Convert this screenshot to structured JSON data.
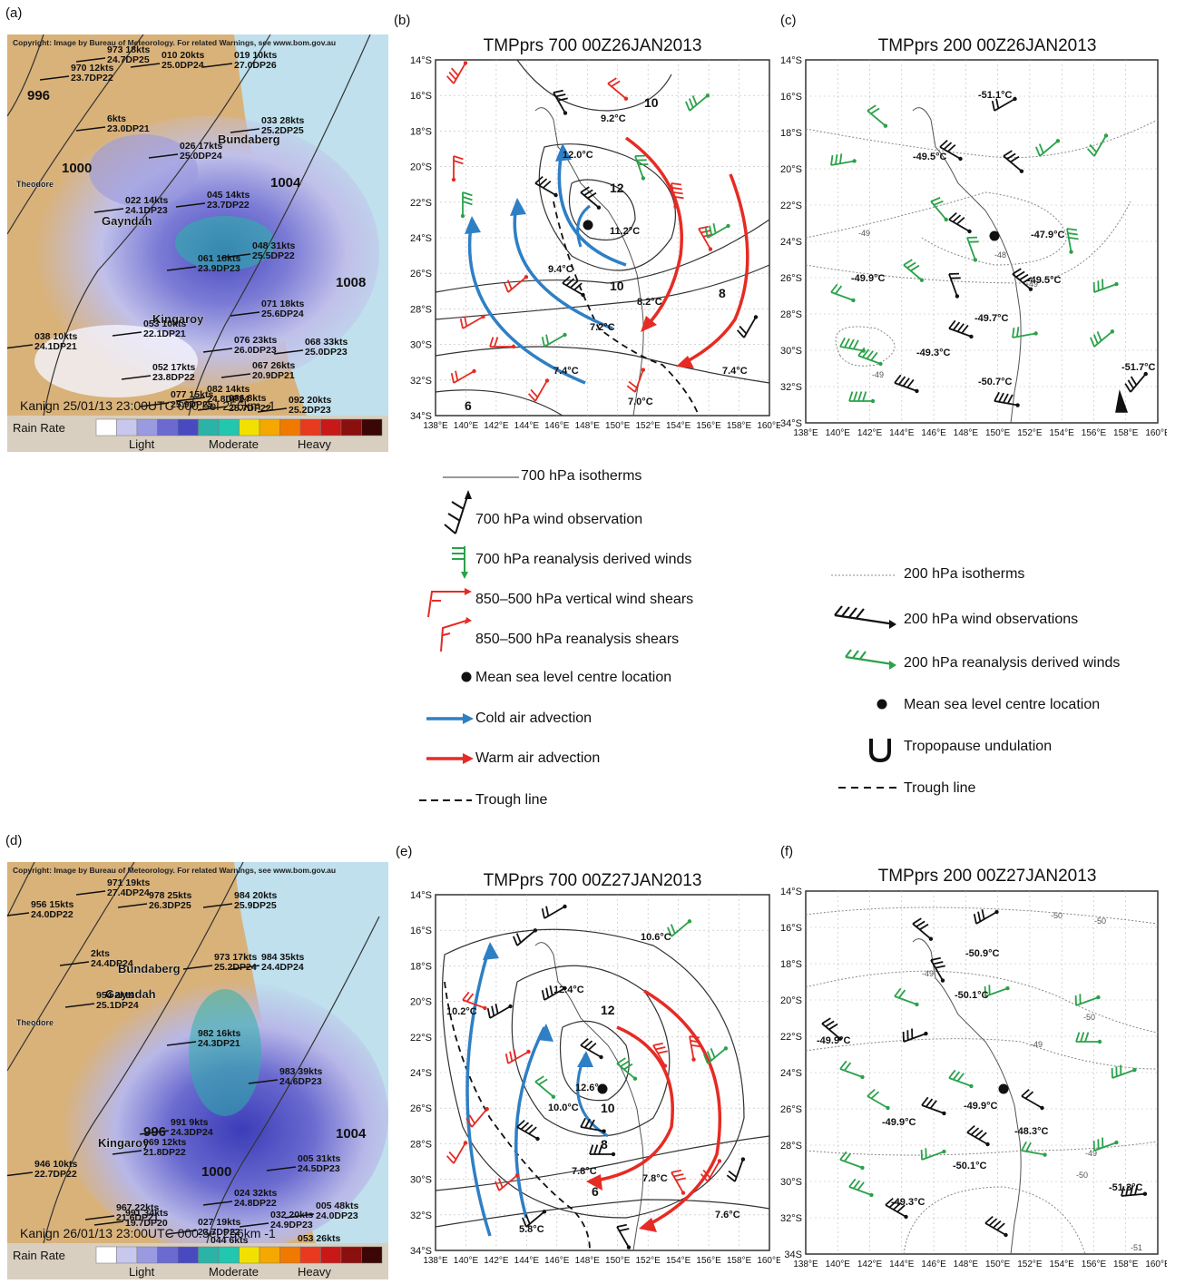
{
  "panels": {
    "a": {
      "label": "(a)",
      "copyright": "Copyright: Image by Bureau of Meteorology. For related Warnings, see www.bom.gov.au",
      "footer": "Kanign  25/01/13 23:00UTC 000.5el 256km -1",
      "rain_rate": "Rain Rate",
      "cats": [
        "Light",
        "Moderate",
        "Heavy"
      ],
      "isobars": [
        "996",
        "1000",
        "1004",
        "1008"
      ],
      "places": [
        "Bundaberg",
        "Gayndah",
        "Kingaroy",
        "Theodore"
      ],
      "obs": [
        "973 18kts 24.7DP25",
        "970 12kts 23.7DP22",
        "010 20kts 25.0DP24",
        "019 10kts 27.0DP26",
        "6kts 23.0DP21",
        "033 28kts 25.2DP25",
        "026 17kts 25.0DP24",
        "022 14kts 24.1DP23",
        "045 14kts 23.7DP22",
        "048 31kts 25.5DP22",
        "061 18kts 23.9DP23",
        "053 10kts 22.1DP21",
        "038 10kts 24.1DP21",
        "071 18kts 25.6DP24",
        "076 23kts 26.0DP23",
        "068 33kts 25.0DP23",
        "052 17kts 23.8DP22",
        "067 26kts 20.9DP21",
        "082 14kts 24.8DP24",
        "077 15kts 25.9DP25",
        "086 8kts 25.7DP22",
        "092 20kts 25.2DP23"
      ]
    },
    "b": {
      "label": "(b)",
      "title": "TMPprs 700 00Z26JAN2013",
      "temps": [
        "9.2°C",
        "12.0°C",
        "11.2°C",
        "9.4°C",
        "8.2°C",
        "7.2°C",
        "7.4°C",
        "7.0°C",
        "7.4°C"
      ],
      "contours": [
        "10",
        "12",
        "10",
        "8",
        "6"
      ]
    },
    "c": {
      "label": "(c)",
      "title": "TMPprs 200 00Z26JAN2013",
      "temps": [
        "-51.1°C",
        "-49.5°C",
        "-47.9°C",
        "-49.9°C",
        "-49.5°C",
        "-49.7°C",
        "-49.3°C",
        "-50.7°C",
        "-51.7°C"
      ],
      "contours": [
        "-49",
        "-48",
        "-49",
        "-49"
      ]
    },
    "d": {
      "label": "(d)",
      "copyright": "Copyright: Image by Bureau of Meteorology. For related Warnings, see www.bom.gov.au",
      "footer": "Kanign  26/01/13 23:00UTC 000.5el 256km -1",
      "rain_rate": "Rain Rate",
      "cats": [
        "Light",
        "Moderate",
        "Heavy"
      ],
      "isobars": [
        "996",
        "1000",
        "1004"
      ],
      "places": [
        "Bundaberg",
        "Gayndah",
        "Kingaroy",
        "Theodore"
      ],
      "obs": [
        "971 19kts 27.4DP24",
        "956 15kts 24.0DP22",
        "978 25kts 26.3DP25",
        "984 20kts 25.9DP25",
        "2kts 24.4DP24",
        "973 17kts 25.2DP24",
        "984 35kts 24.4DP24",
        "954 2kts 25.1DP24",
        "982 16kts 24.3DP21",
        "983 39kts 24.6DP23",
        "991 9kts 24.3DP24",
        "946 10kts 22.7DP22",
        "969 12kts 21.8DP22",
        "005 31kts 24.5DP23",
        "024 32kts 24.8DP22",
        "005 48kts 24.0DP23",
        "032 20kts 24.9DP23",
        "967 22kts 21.6DP21",
        "991 34kts 19.7DP20",
        "027 19kts 23.7DP22",
        "044 6kts 23.4DP22",
        "053 26kts 23.9DP22"
      ]
    },
    "e": {
      "label": "(e)",
      "title": "TMPprs 700 00Z27JAN2013",
      "temps": [
        "10.6°C",
        "12.4°C",
        "10.2°C",
        "12.6°C",
        "10.0°C",
        "7.8°C",
        "7.8°C",
        "5.8°C",
        "7.6°C"
      ],
      "contours": [
        "12",
        "10",
        "8",
        "6"
      ]
    },
    "f": {
      "label": "(f)",
      "title": "TMPprs 200 00Z27JAN2013",
      "temps": [
        "-50.9°C",
        "-50.1°C",
        "-49.9°C",
        "-49.9°C",
        "-48.3°C",
        "-49.9°C",
        "-50.1°C",
        "-49.3°C",
        "-51.3°C"
      ],
      "contours": [
        "-50",
        "-50",
        "-49",
        "-50",
        "-49",
        "-49",
        "-50",
        "-51"
      ]
    }
  },
  "map_axes": {
    "lat_labels_700": [
      "14°S",
      "16°S",
      "18°S",
      "20°S",
      "22°S",
      "24°S",
      "26°S",
      "28°S",
      "30°S",
      "32°S",
      "34°S"
    ],
    "lat_labels_200c": [
      "14°S",
      "16°S",
      "18°S",
      "20°S",
      "22°S",
      "24°S",
      "26°S",
      "28°S",
      "30°S",
      "32°S",
      "34°S"
    ],
    "lat_labels_200f": [
      "14°S",
      "16°S",
      "18°S",
      "20°S",
      "22°S",
      "24°S",
      "26°S",
      "28°S",
      "30°S",
      "32°S",
      "34S"
    ],
    "lon_labels": [
      "138°E",
      "140°E",
      "142°E",
      "144°E",
      "146°E",
      "148°E",
      "150°E",
      "152°E",
      "154°E",
      "156°E",
      "158°E",
      "160°E"
    ]
  },
  "legend_700": [
    {
      "key": "isotherm",
      "text": "700 hPa isotherms"
    },
    {
      "key": "wind-obs",
      "text": "700 hPa wind observation"
    },
    {
      "key": "reanalysis-wind",
      "text": "700 hPa reanalysis derived winds"
    },
    {
      "key": "shear",
      "text": "850–500 hPa vertical wind shears"
    },
    {
      "key": "reanalysis-shear",
      "text": "850–500 hPa reanalysis shears"
    },
    {
      "key": "mslp",
      "text": "Mean sea level centre location"
    },
    {
      "key": "cold",
      "text": "Cold air advection"
    },
    {
      "key": "warm",
      "text": "Warm air advection"
    },
    {
      "key": "trough",
      "text": "Trough line"
    }
  ],
  "legend_200": [
    {
      "key": "isotherm",
      "text": "200 hPa isotherms"
    },
    {
      "key": "wind-obs",
      "text": "200 hPa wind observations"
    },
    {
      "key": "reanalysis-wind",
      "text": "200 hPa reanalysis derived winds"
    },
    {
      "key": "mslp",
      "text": "Mean sea level centre location"
    },
    {
      "key": "tropopause",
      "text": "Tropopause undulation"
    },
    {
      "key": "trough",
      "text": "Trough line"
    }
  ],
  "colors": {
    "cold": "#2f7fc4",
    "warm": "#e62b24",
    "reanalysis": "#2aa24a",
    "obs": "#111111",
    "rain_scale": [
      "#ffffff",
      "#c8c8ee",
      "#9a9ae0",
      "#6a6ad0",
      "#4a4ac0",
      "#2bb3a8",
      "#22c7b0",
      "#f2e000",
      "#f5a800",
      "#f07a00",
      "#e83a1e",
      "#c81818",
      "#8a0f0f",
      "#3a0606"
    ]
  }
}
